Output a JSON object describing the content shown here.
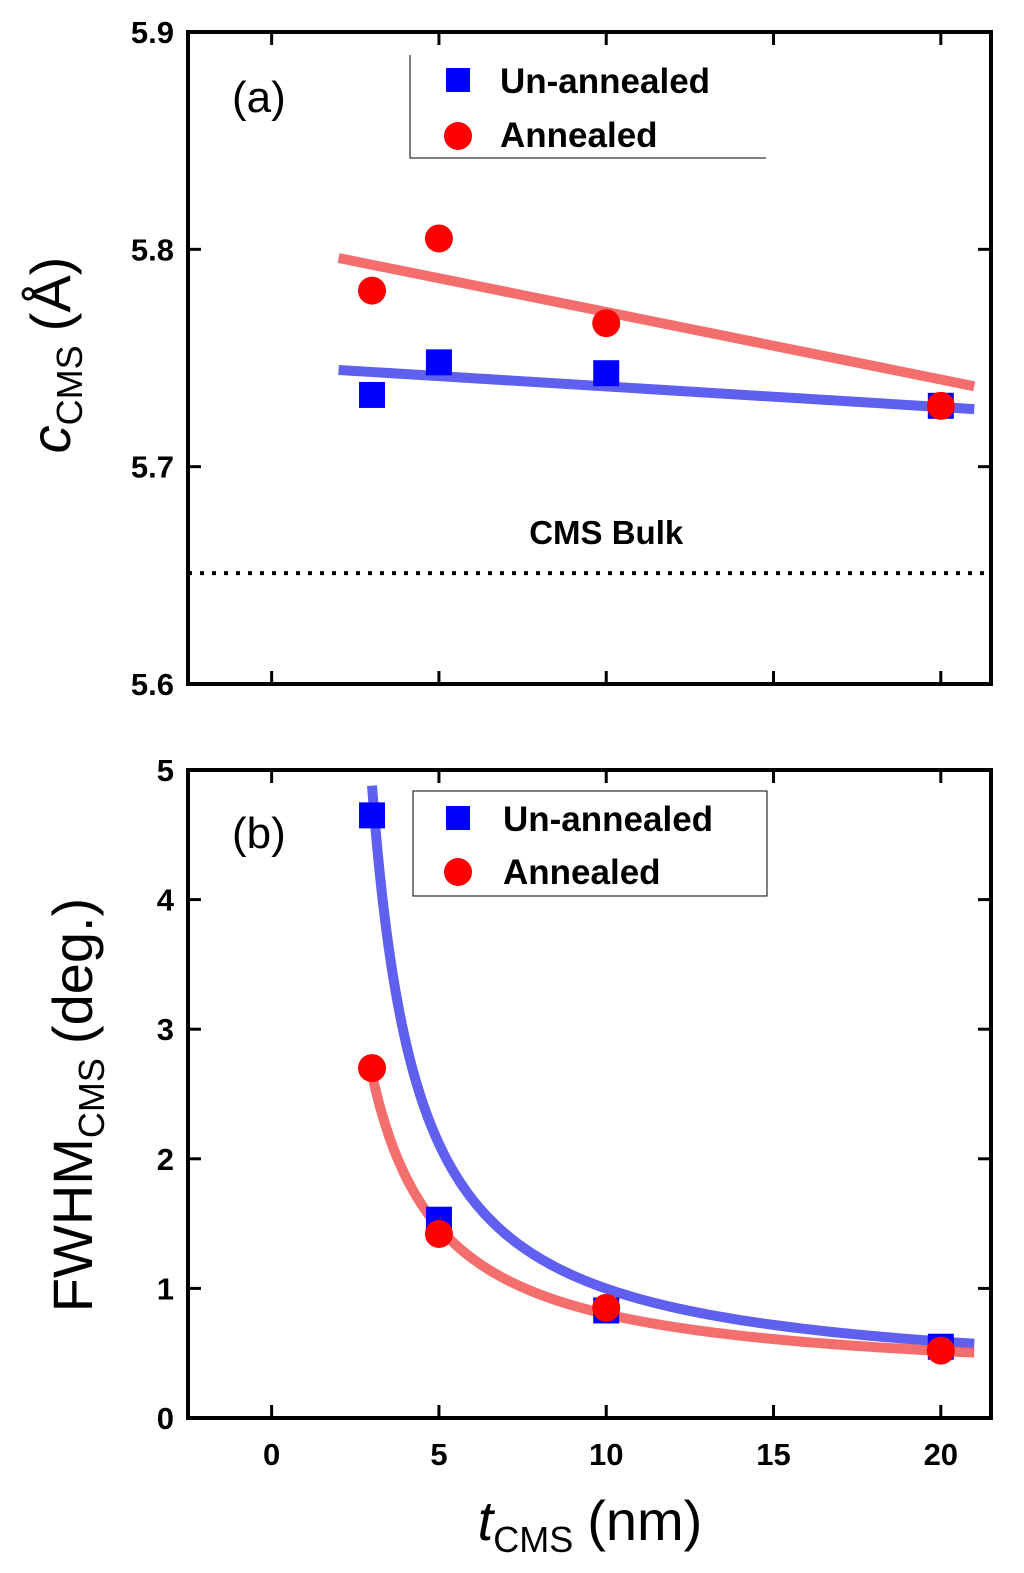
{
  "chart_data": [
    {
      "type": "scatter",
      "panel_label": "(a)",
      "ylabel": {
        "symbol": "c",
        "subscript": "CMS",
        "unit": "(Å)"
      },
      "xlabel": "",
      "xlim": [
        -2.5,
        21.5
      ],
      "ylim": [
        5.6,
        5.9
      ],
      "xticks": [
        0,
        5,
        10,
        15,
        20
      ],
      "yticks": [
        5.6,
        5.7,
        5.8,
        5.9
      ],
      "ytick_labels": [
        "5.6",
        "5.7",
        "5.8",
        "5.9"
      ],
      "grid": false,
      "legend_position": "top-center",
      "annotation": {
        "text": "CMS Bulk",
        "x": 10,
        "y": 5.67
      },
      "reference_line": {
        "style": "dotted",
        "y": 5.651,
        "label": "CMS Bulk"
      },
      "series": [
        {
          "name": "Un-annealed",
          "marker": "square",
          "color": "#0000ff",
          "fit_color": "#4a4aee",
          "x": [
            3,
            5,
            10,
            20
          ],
          "y": [
            5.733,
            5.748,
            5.743,
            5.728
          ],
          "fit": {
            "kind": "linear",
            "x": [
              2,
              21
            ],
            "y": [
              5.7445,
              5.7265
            ]
          }
        },
        {
          "name": "Annealed",
          "marker": "circle",
          "color": "#ff0000",
          "fit_color": "#f25a5a",
          "x": [
            3,
            5,
            10,
            20
          ],
          "y": [
            5.781,
            5.805,
            5.766,
            5.728
          ],
          "fit": {
            "kind": "linear",
            "x": [
              2,
              21
            ],
            "y": [
              5.796,
              5.737
            ]
          }
        }
      ]
    },
    {
      "type": "scatter",
      "panel_label": "(b)",
      "ylabel": {
        "symbol": "FWHM",
        "subscript": "CMS",
        "unit": "(deg.)"
      },
      "xlabel": {
        "symbol": "t",
        "subscript": "CMS",
        "unit": "(nm)"
      },
      "xlim": [
        -2.5,
        21.5
      ],
      "ylim": [
        0,
        5
      ],
      "xticks": [
        0,
        5,
        10,
        15,
        20
      ],
      "xtick_labels": [
        "0",
        "5",
        "10",
        "15",
        "20"
      ],
      "yticks": [
        0,
        1,
        2,
        3,
        4,
        5
      ],
      "ytick_labels": [
        "0",
        "1",
        "2",
        "3",
        "4",
        "5"
      ],
      "grid": false,
      "legend_position": "top-center",
      "series": [
        {
          "name": "Un-annealed",
          "marker": "square",
          "color": "#0000ff",
          "fit_color": "#4a4aee",
          "x": [
            3,
            5,
            10,
            20
          ],
          "y": [
            4.65,
            1.53,
            0.83,
            0.55
          ],
          "fit": {
            "kind": "inverse",
            "a": 0.25,
            "b": 6.25,
            "x0": 1.65,
            "x_range": [
              3,
              21
            ]
          }
        },
        {
          "name": "Annealed",
          "marker": "circle",
          "color": "#ff0000",
          "fit_color": "#f25a5a",
          "x": [
            3,
            5,
            10,
            20
          ],
          "y": [
            2.7,
            1.42,
            0.85,
            0.52
          ],
          "fit": {
            "kind": "inverse",
            "a": 0.26,
            "b": 4.9,
            "x0": 0.95,
            "x_range": [
              3,
              21
            ]
          }
        }
      ]
    }
  ]
}
